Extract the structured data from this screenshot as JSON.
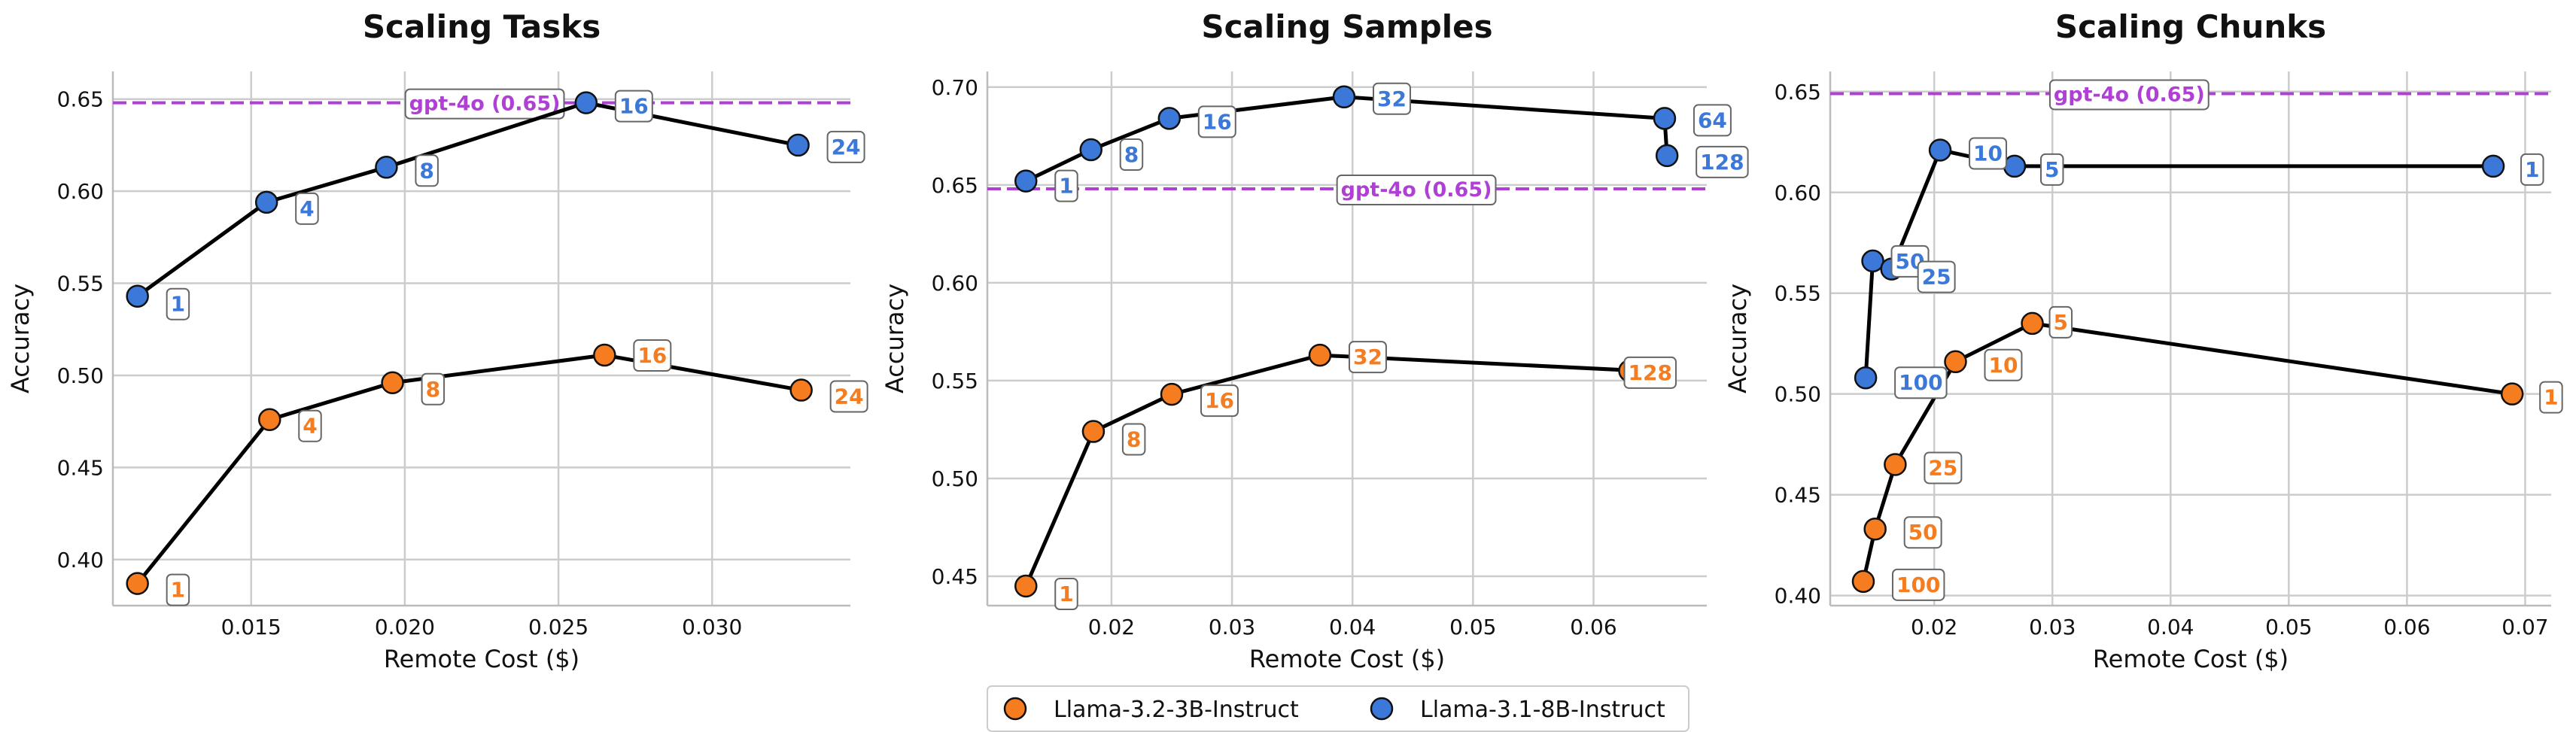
{
  "colors": {
    "orange": "#f57c1f",
    "blue": "#3b78d8",
    "reference": "#b03fd6",
    "grid": "#cccccc",
    "line": "#000000"
  },
  "legend": {
    "items": [
      {
        "label": "Llama-3.2-3B-Instruct",
        "color": "#f57c1f"
      },
      {
        "label": "Llama-3.1-8B-Instruct",
        "color": "#3b78d8"
      }
    ]
  },
  "chart_data": [
    {
      "type": "line",
      "title": "Scaling Tasks",
      "xlabel": "Remote Cost ($)",
      "ylabel": "Accuracy",
      "xlim": [
        0.0105,
        0.0345
      ],
      "ylim": [
        0.375,
        0.665
      ],
      "xticks": [
        0.015,
        0.02,
        0.025,
        0.03
      ],
      "xtick_labels": [
        "0.015",
        "0.020",
        "0.025",
        "0.030"
      ],
      "yticks": [
        0.4,
        0.45,
        0.5,
        0.55,
        0.6,
        0.65
      ],
      "ytick_labels": [
        "0.40",
        "0.45",
        "0.50",
        "0.55",
        "0.60",
        "0.65"
      ],
      "reference": {
        "value": 0.648,
        "label": "gpt-4o (0.65)",
        "label_x": 0.0226
      },
      "series": [
        {
          "name": "Llama-3.2-3B-Instruct",
          "color": "#f57c1f",
          "points": [
            {
              "x": 0.0113,
              "y": 0.387,
              "label": "1"
            },
            {
              "x": 0.0156,
              "y": 0.476,
              "label": "4"
            },
            {
              "x": 0.0196,
              "y": 0.496,
              "label": "8"
            },
            {
              "x": 0.0265,
              "y": 0.511,
              "label": "16"
            },
            {
              "x": 0.0329,
              "y": 0.492,
              "label": "24"
            }
          ]
        },
        {
          "name": "Llama-3.1-8B-Instruct",
          "color": "#3b78d8",
          "points": [
            {
              "x": 0.0113,
              "y": 0.543,
              "label": "1"
            },
            {
              "x": 0.0155,
              "y": 0.594,
              "label": "4"
            },
            {
              "x": 0.0194,
              "y": 0.613,
              "label": "8"
            },
            {
              "x": 0.0259,
              "y": 0.648,
              "label": "16"
            },
            {
              "x": 0.0328,
              "y": 0.625,
              "label": "24"
            }
          ]
        }
      ]
    },
    {
      "type": "line",
      "title": "Scaling Samples",
      "xlabel": "Remote Cost ($)",
      "ylabel": "Accuracy",
      "xlim": [
        0.0097,
        0.0694
      ],
      "ylim": [
        0.435,
        0.708
      ],
      "xticks": [
        0.02,
        0.03,
        0.04,
        0.05,
        0.06
      ],
      "xtick_labels": [
        "0.02",
        "0.03",
        "0.04",
        "0.05",
        "0.06"
      ],
      "yticks": [
        0.45,
        0.5,
        0.55,
        0.6,
        0.65,
        0.7
      ],
      "ytick_labels": [
        "0.45",
        "0.50",
        "0.55",
        "0.60",
        "0.65",
        "0.70"
      ],
      "reference": {
        "value": 0.648,
        "label": "gpt-4o (0.65)",
        "label_x": 0.0453
      },
      "series": [
        {
          "name": "Llama-3.2-3B-Instruct",
          "color": "#f57c1f",
          "points": [
            {
              "x": 0.0129,
              "y": 0.445,
              "label": "1"
            },
            {
              "x": 0.0185,
              "y": 0.524,
              "label": "8"
            },
            {
              "x": 0.025,
              "y": 0.543,
              "label": "16"
            },
            {
              "x": 0.0373,
              "y": 0.563,
              "label": "32"
            },
            {
              "x": 0.0639,
              "y": 0.555,
              "label": ""
            },
            {
              "x": 0.063,
              "y": 0.555,
              "label": "128"
            }
          ]
        },
        {
          "name": "Llama-3.1-8B-Instruct",
          "color": "#3b78d8",
          "points": [
            {
              "x": 0.0129,
              "y": 0.652,
              "label": "1"
            },
            {
              "x": 0.0183,
              "y": 0.668,
              "label": "8"
            },
            {
              "x": 0.0248,
              "y": 0.684,
              "label": "16"
            },
            {
              "x": 0.0393,
              "y": 0.695,
              "label": "32"
            },
            {
              "x": 0.0659,
              "y": 0.684,
              "label": "64"
            },
            {
              "x": 0.0661,
              "y": 0.665,
              "label": "128"
            }
          ]
        }
      ]
    },
    {
      "type": "line",
      "title": "Scaling Chunks",
      "xlabel": "Remote Cost ($)",
      "ylabel": "Accuracy",
      "xlim": [
        0.0112,
        0.0722
      ],
      "ylim": [
        0.395,
        0.66
      ],
      "xticks": [
        0.02,
        0.03,
        0.04,
        0.05,
        0.06,
        0.07
      ],
      "xtick_labels": [
        "0.02",
        "0.03",
        "0.04",
        "0.05",
        "0.06",
        "0.07"
      ],
      "yticks": [
        0.4,
        0.45,
        0.5,
        0.55,
        0.6,
        0.65
      ],
      "ytick_labels": [
        "0.40",
        "0.45",
        "0.50",
        "0.55",
        "0.60",
        "0.65"
      ],
      "reference": {
        "value": 0.649,
        "label": "gpt-4o (0.65)",
        "label_x": 0.0365
      },
      "series": [
        {
          "name": "Llama-3.2-3B-Instruct",
          "color": "#f57c1f",
          "points": [
            {
              "x": 0.014,
              "y": 0.407,
              "label": "100"
            },
            {
              "x": 0.015,
              "y": 0.433,
              "label": "50"
            },
            {
              "x": 0.0167,
              "y": 0.465,
              "label": "25"
            },
            {
              "x": 0.0218,
              "y": 0.516,
              "label": "10"
            },
            {
              "x": 0.0283,
              "y": 0.535,
              "label": "5"
            },
            {
              "x": 0.0689,
              "y": 0.5,
              "label": "1"
            }
          ]
        },
        {
          "name": "Llama-3.1-8B-Instruct",
          "color": "#3b78d8",
          "points": [
            {
              "x": 0.0142,
              "y": 0.508,
              "label": "100"
            },
            {
              "x": 0.0148,
              "y": 0.566,
              "label": "50"
            },
            {
              "x": 0.0164,
              "y": 0.562,
              "label": "25"
            },
            {
              "x": 0.0205,
              "y": 0.621,
              "label": "10"
            },
            {
              "x": 0.0268,
              "y": 0.613,
              "label": "5"
            },
            {
              "x": 0.0673,
              "y": 0.613,
              "label": "1"
            }
          ]
        }
      ]
    }
  ]
}
